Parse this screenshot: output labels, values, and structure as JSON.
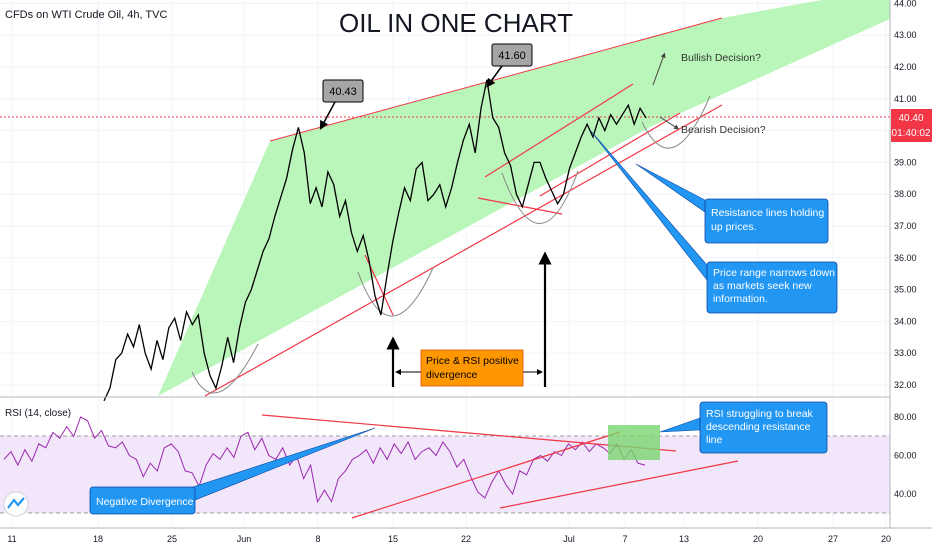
{
  "header": {
    "symbol": "CFDs on WTI Crude Oil, 4h, TVC",
    "title": "OIL IN ONE CHART"
  },
  "price_axis": {
    "last_price": "40.40",
    "countdown": "01:40:02"
  },
  "rsi_panel": {
    "label": "RSI (14, close)"
  },
  "colors": {
    "price_line": "#000000",
    "rsi_line": "#9c27b0",
    "channel_fill": "#aef5ae",
    "trend_lines": "#f23645",
    "callout_blue": "#2196f3",
    "callout_orange": "#ff9800",
    "last_price_badge": "#f23645",
    "rsi_band_fill": "#f1e6fa"
  },
  "annotations": {
    "peak_1": "40.43",
    "peak_2": "41.60",
    "bullish": "Bullish Decision?",
    "bearish": "Bearish Decision?",
    "resistance": [
      "Resistance lines holding",
      "up prices."
    ],
    "price_range": [
      "Price range narrows down",
      "as markets seek new",
      "information."
    ],
    "divergence": [
      "Price & RSI positive",
      "divergence"
    ],
    "rsi_struggle": [
      "RSI struggling to break",
      "descending resistance",
      "line"
    ],
    "negative_div": "Negative Divergence"
  },
  "chart_data": [
    {
      "type": "line",
      "title": "OIL IN ONE CHART",
      "subtitle": "CFDs on WTI Crude Oil, 4h, TVC",
      "x_ticks": [
        "11",
        "18",
        "25",
        "Jun",
        "8",
        "15",
        "22",
        "Jul",
        "7",
        "13",
        "20",
        "27",
        "20"
      ],
      "y_ticks": [
        32,
        33,
        34,
        35,
        36,
        37,
        38,
        39,
        40,
        41,
        42,
        43,
        44
      ],
      "ylim": [
        31.7,
        44.1
      ],
      "grid": true,
      "series": [
        {
          "values": [
            31.5,
            31.9,
            32.8,
            33.0,
            33.6,
            33.2,
            33.9,
            33.0,
            32.5,
            33.4,
            32.8,
            33.8,
            34.1,
            33.4,
            34.3,
            33.9,
            34.2,
            33.0,
            32.3,
            31.9,
            32.6,
            33.5,
            32.7,
            33.8,
            34.6,
            35.0,
            35.6,
            36.2,
            36.6,
            37.3,
            37.9,
            38.5,
            39.4,
            40.1,
            39.3,
            37.7,
            38.2,
            37.6,
            38.7,
            38.3,
            37.3,
            37.8,
            36.8,
            36.2,
            36.7,
            35.9,
            34.8,
            34.2,
            35.4,
            36.5,
            37.4,
            38.2,
            37.8,
            38.8,
            39.0,
            37.8,
            38.0,
            38.3,
            37.6,
            38.2,
            39.0,
            39.7,
            40.2,
            39.3,
            40.7,
            41.6,
            40.4,
            40.1,
            39.3,
            38.9,
            38.0,
            37.6,
            38.3,
            39.0,
            39.0,
            38.5,
            38.1,
            37.7,
            38.0,
            38.8,
            39.3,
            39.8,
            40.2,
            39.8,
            40.4,
            40.0,
            40.5,
            40.2,
            40.5,
            40.8,
            40.2,
            40.7,
            40.4
          ]
        }
      ]
    },
    {
      "type": "line",
      "title": "RSI (14, close)",
      "y_ticks": [
        40,
        60,
        80
      ],
      "ylim": [
        29.5,
        88
      ],
      "band": [
        30,
        70
      ],
      "series": [
        {
          "values": [
            58,
            62,
            55,
            63,
            57,
            66,
            64,
            72,
            69,
            75,
            70,
            80,
            78,
            69,
            73,
            65,
            64,
            67,
            60,
            58,
            49,
            56,
            52,
            64,
            66,
            62,
            52,
            51,
            44,
            55,
            61,
            58,
            64,
            59,
            70,
            72,
            63,
            69,
            60,
            58,
            64,
            55,
            60,
            48,
            55,
            36,
            42,
            36,
            48,
            52,
            58,
            60,
            63,
            56,
            64,
            58,
            66,
            61,
            67,
            58,
            62,
            64,
            60,
            67,
            62,
            54,
            58,
            49,
            41,
            38,
            46,
            52,
            45,
            40,
            52,
            50,
            58,
            60,
            57,
            62,
            60,
            66,
            63,
            67,
            62,
            66,
            64,
            61,
            66,
            58,
            63,
            56,
            55
          ]
        }
      ]
    }
  ]
}
